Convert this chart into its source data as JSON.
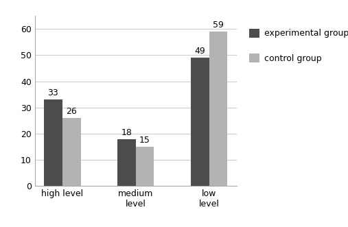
{
  "categories": [
    "high level",
    "medium\nlevel",
    "low\nlevel"
  ],
  "experimental": [
    33,
    18,
    49
  ],
  "control": [
    26,
    15,
    59
  ],
  "exp_color": "#4d4d4d",
  "ctrl_color": "#b3b3b3",
  "exp_label": "experimental group",
  "ctrl_label": "control group",
  "ylim": [
    0,
    65
  ],
  "yticks": [
    0,
    10,
    20,
    30,
    40,
    50,
    60
  ],
  "bar_width": 0.25,
  "label_fontsize": 9,
  "tick_fontsize": 9,
  "legend_fontsize": 9,
  "background_color": "#ffffff",
  "grid_color": "#cccccc",
  "spine_color": "#aaaaaa"
}
